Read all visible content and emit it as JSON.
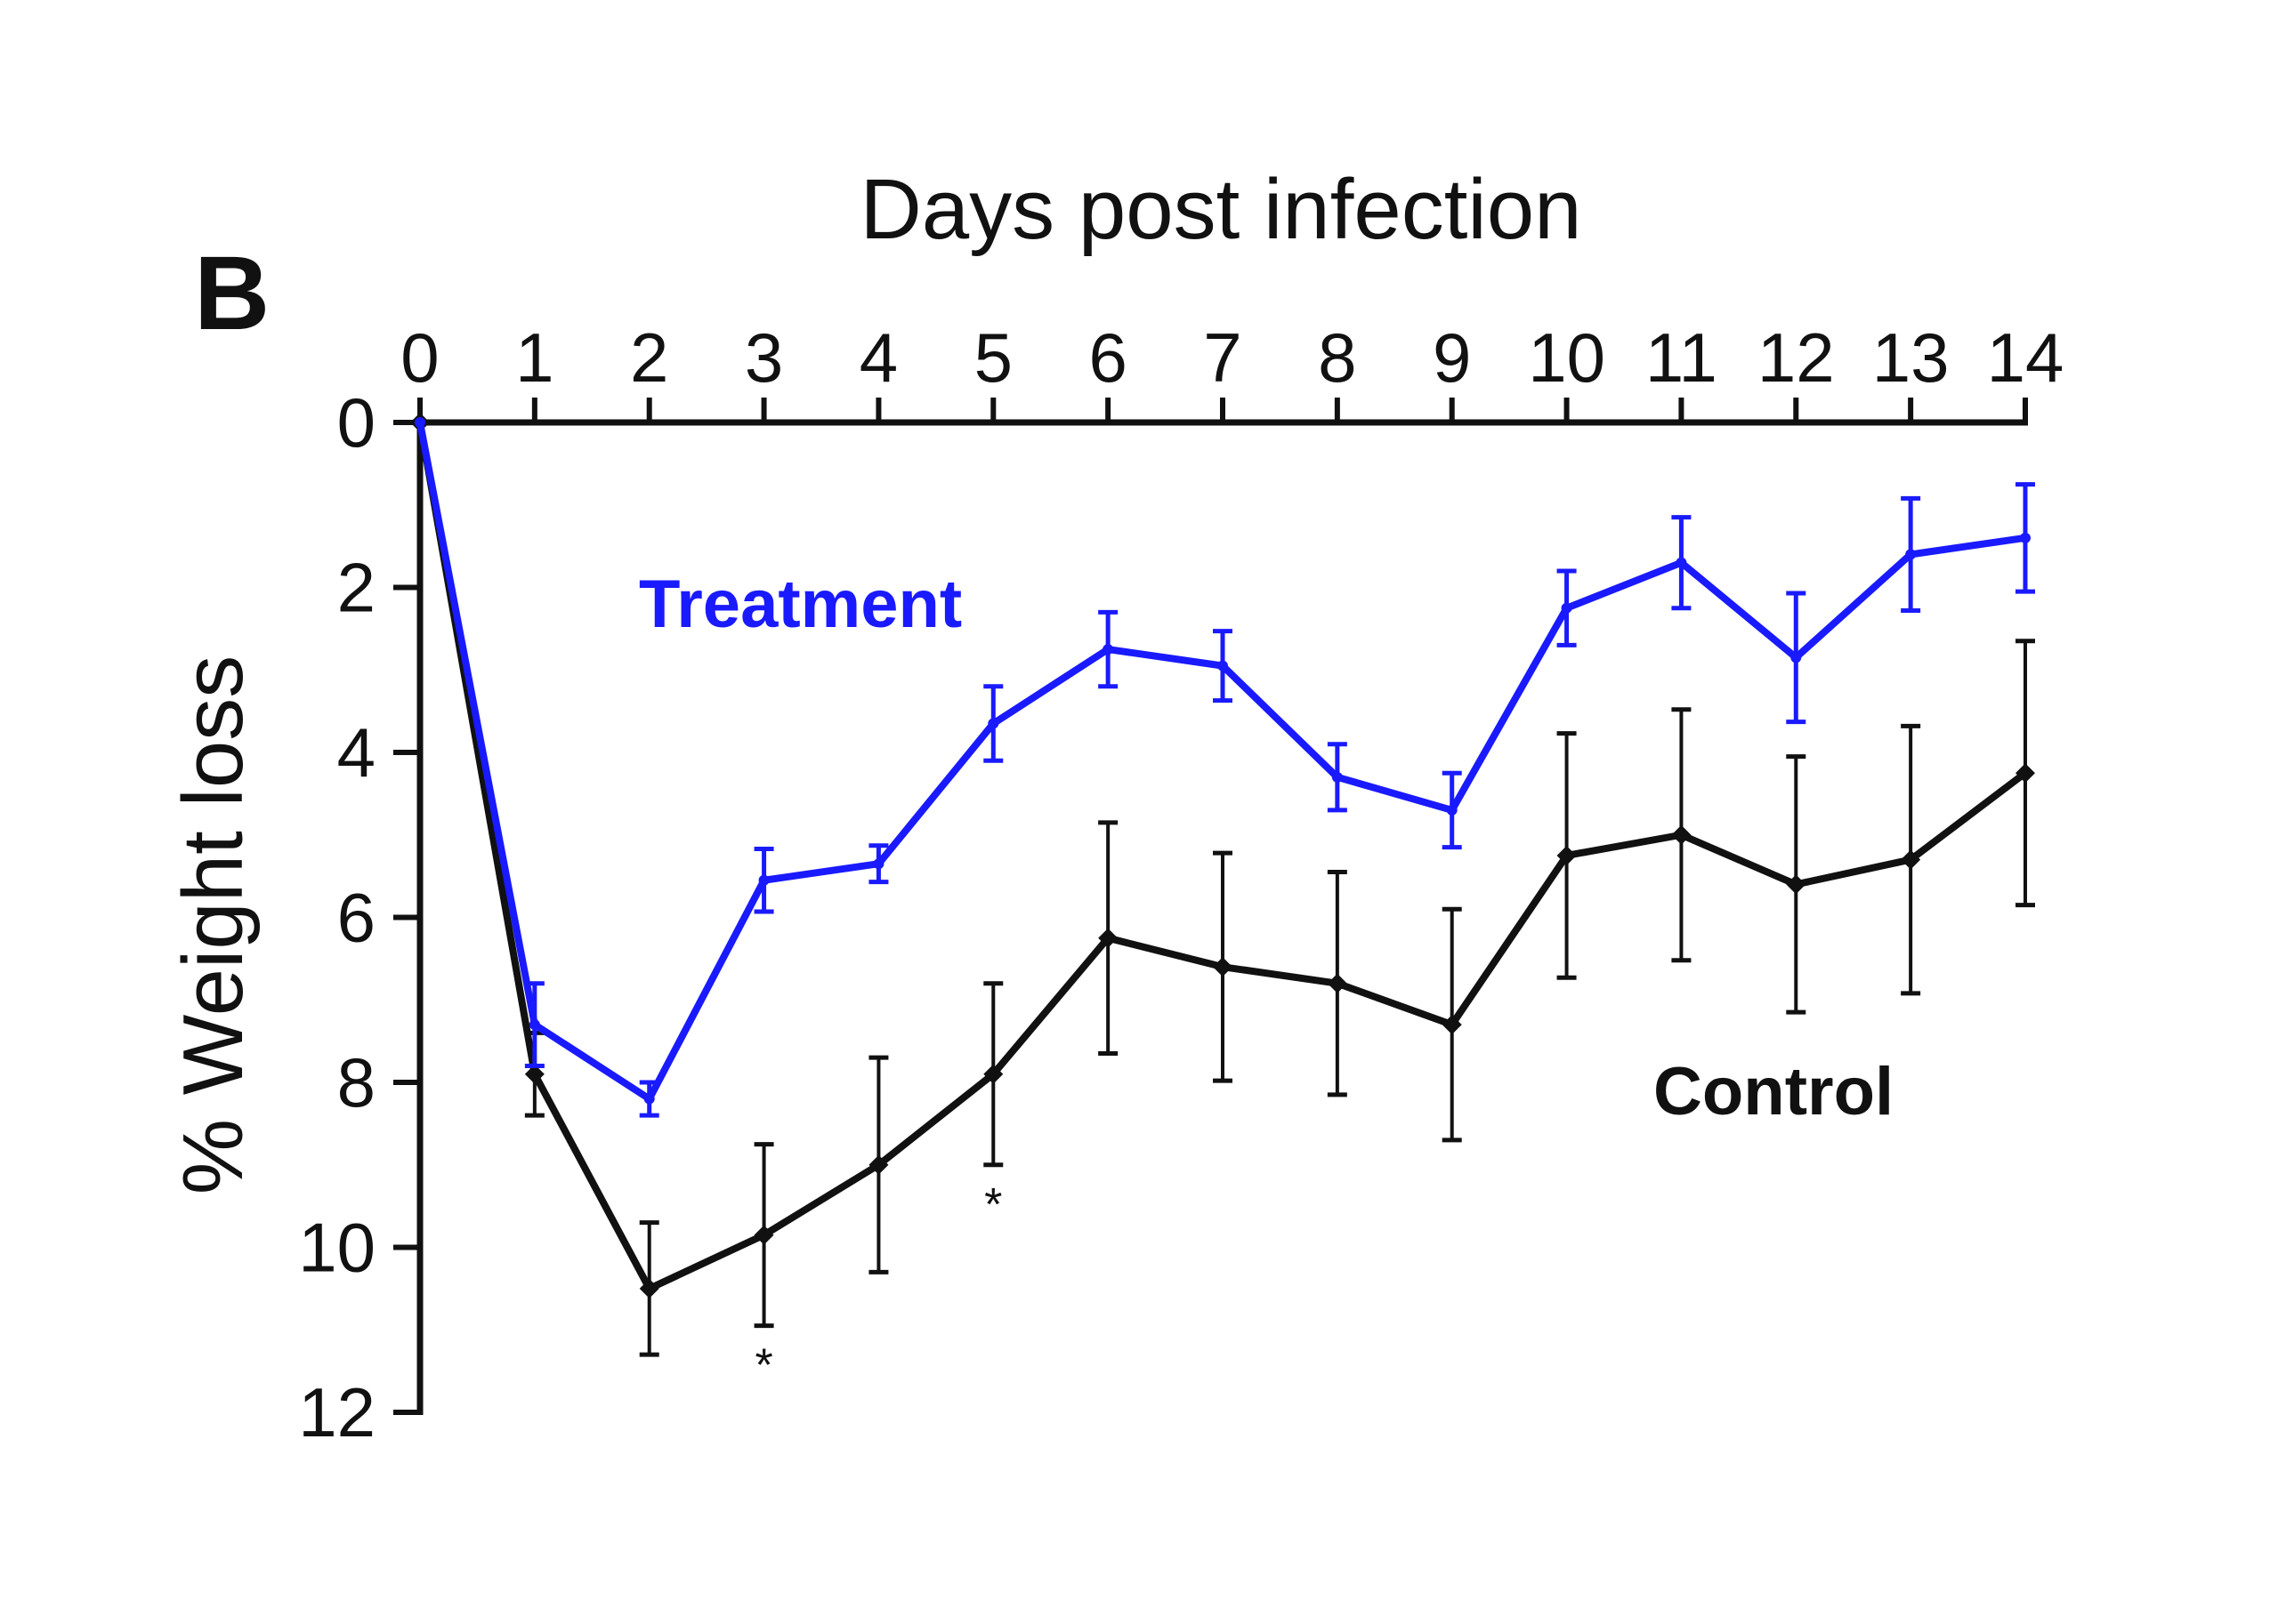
{
  "panel_label": "B",
  "chart_data": {
    "type": "line",
    "xlabel": "Days post infection",
    "ylabel": "% Weight loss",
    "x_axis_position": "top",
    "y_inverted": true,
    "grid": false,
    "legend": "none (inline series labels)",
    "x": [
      0,
      1,
      2,
      3,
      4,
      5,
      6,
      7,
      8,
      9,
      10,
      11,
      12,
      13,
      14
    ],
    "x_ticks": [
      "0",
      "1",
      "2",
      "3",
      "4",
      "5",
      "6",
      "7",
      "8",
      "9",
      "10",
      "11",
      "12",
      "13",
      "14"
    ],
    "y_ticks": [
      "0",
      "2",
      "4",
      "6",
      "8",
      "10",
      "12"
    ],
    "xlim": [
      0,
      14
    ],
    "ylim": [
      0,
      12
    ],
    "series": [
      {
        "name": "Treatment",
        "color": "#1a1aff",
        "values": [
          0,
          7.3,
          8.2,
          5.55,
          5.35,
          3.65,
          2.75,
          2.95,
          4.3,
          4.7,
          2.25,
          1.7,
          2.85,
          1.6,
          1.4
        ],
        "error": [
          0,
          0.5,
          0.2,
          0.38,
          0.22,
          0.45,
          0.45,
          0.42,
          0.4,
          0.45,
          0.45,
          0.55,
          0.78,
          0.68,
          0.65
        ]
      },
      {
        "name": "Control",
        "color": "#111111",
        "values": [
          0,
          7.9,
          10.5,
          9.85,
          9.0,
          7.9,
          6.25,
          6.6,
          6.8,
          7.3,
          5.25,
          5.0,
          5.6,
          5.3,
          4.25
        ],
        "error": [
          0,
          0.5,
          0.8,
          1.1,
          1.3,
          1.1,
          1.4,
          1.38,
          1.35,
          1.4,
          1.48,
          1.52,
          1.55,
          1.62,
          1.6
        ]
      }
    ],
    "annotations": [
      {
        "text": "*",
        "x": 3,
        "below": "Control"
      },
      {
        "text": "*",
        "x": 5,
        "below": "Control"
      }
    ]
  }
}
